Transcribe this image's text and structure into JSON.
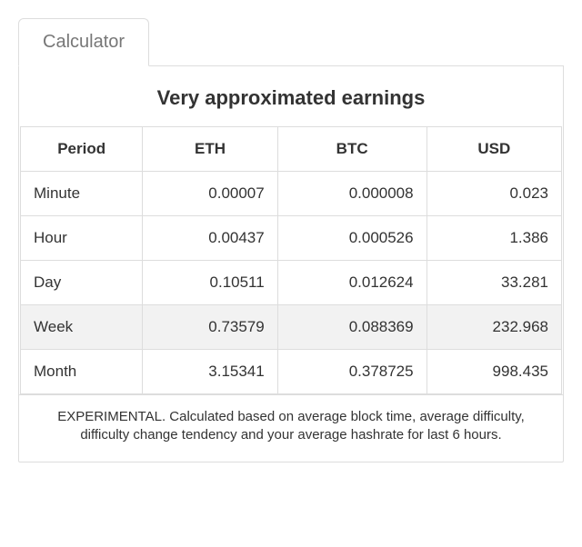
{
  "tab": {
    "label": "Calculator"
  },
  "title": "Very approximated earnings",
  "columns": [
    "Period",
    "ETH",
    "BTC",
    "USD"
  ],
  "rows": [
    {
      "period": "Minute",
      "eth": "0.00007",
      "btc": "0.000008",
      "usd": "0.023",
      "highlight": false
    },
    {
      "period": "Hour",
      "eth": "0.00437",
      "btc": "0.000526",
      "usd": "1.386",
      "highlight": false
    },
    {
      "period": "Day",
      "eth": "0.10511",
      "btc": "0.012624",
      "usd": "33.281",
      "highlight": false
    },
    {
      "period": "Week",
      "eth": "0.73579",
      "btc": "0.088369",
      "usd": "232.968",
      "highlight": true
    },
    {
      "period": "Month",
      "eth": "3.15341",
      "btc": "0.378725",
      "usd": "998.435",
      "highlight": false
    }
  ],
  "footnote": "EXPERIMENTAL. Calculated based on average block time, average difficulty, difficulty change tendency and your average hashrate for last 6 hours.",
  "style": {
    "border_color": "#dddddd",
    "text_color": "#333333",
    "muted_text": "#777777",
    "highlight_bg": "#f2f2f2",
    "background": "#ffffff",
    "title_fontsize": 22,
    "header_fontsize": 17,
    "cell_fontsize": 17,
    "tab_fontsize": 20,
    "footnote_fontsize": 15
  }
}
